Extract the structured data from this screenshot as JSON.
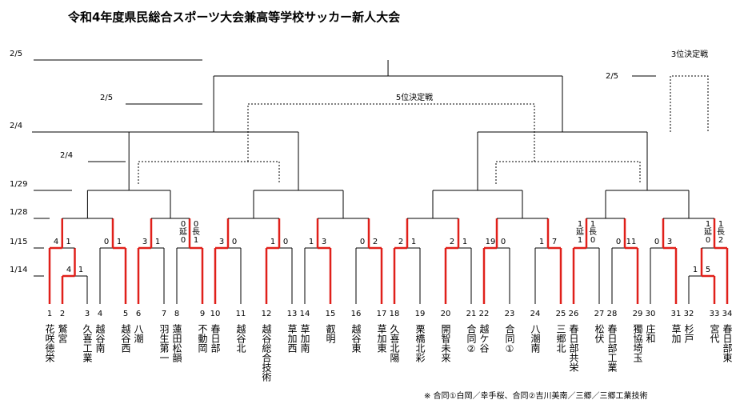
{
  "header": {
    "title": "令和4年度県民総合スポーツ大会兼高等学校サッカー新人大会"
  },
  "dates": [
    "2/5",
    "2/5",
    "2/4",
    "2/4",
    "1/29",
    "1/28",
    "1/15",
    "1/14"
  ],
  "third_place": {
    "label": "3位決定戦",
    "date": "2/5"
  },
  "fifth_place": {
    "label": "5位決定戦"
  },
  "teams": [
    {
      "no": 1,
      "name": "花咲徳栄"
    },
    {
      "no": 2,
      "name": "鷲宮"
    },
    {
      "no": 3,
      "name": "久喜工業"
    },
    {
      "no": 4,
      "name": "越谷南"
    },
    {
      "no": 5,
      "name": "越谷西"
    },
    {
      "no": 6,
      "name": "八潮"
    },
    {
      "no": 7,
      "name": "羽生第一"
    },
    {
      "no": 8,
      "name": "蓮田松韻"
    },
    {
      "no": 9,
      "name": "不動岡"
    },
    {
      "no": 10,
      "name": "春日部"
    },
    {
      "no": 11,
      "name": "越谷北"
    },
    {
      "no": 12,
      "name": "越谷総合技術"
    },
    {
      "no": 13,
      "name": "草加西"
    },
    {
      "no": 14,
      "name": "草加南"
    },
    {
      "no": 15,
      "name": "叡明"
    },
    {
      "no": 16,
      "name": "越谷東"
    },
    {
      "no": 17,
      "name": "草加東"
    },
    {
      "no": 18,
      "name": "久喜北陽"
    },
    {
      "no": 19,
      "name": "栗橋北彩"
    },
    {
      "no": 20,
      "name": "開智未来"
    },
    {
      "no": 21,
      "name": "合同②"
    },
    {
      "no": 22,
      "name": "越ケ谷"
    },
    {
      "no": 23,
      "name": "合同①"
    },
    {
      "no": 24,
      "name": "八潮南"
    },
    {
      "no": 25,
      "name": "三郷北"
    },
    {
      "no": 26,
      "name": "春日部共栄"
    },
    {
      "no": 27,
      "name": "松伏"
    },
    {
      "no": 28,
      "name": "春日部工業"
    },
    {
      "no": 29,
      "name": "獨協埼玉"
    },
    {
      "no": 30,
      "name": "庄和"
    },
    {
      "no": 31,
      "name": "草加"
    },
    {
      "no": 32,
      "name": "杉戸"
    },
    {
      "no": 33,
      "name": "宮代"
    },
    {
      "no": 34,
      "name": "春日部東"
    }
  ],
  "matches": [
    {
      "left": 4,
      "right": 1
    },
    {
      "left": 4,
      "right": 1
    },
    {
      "left": 0,
      "right": 1
    },
    {
      "left": 3,
      "right": 1
    },
    {
      "left": 0,
      "right": 0,
      "note_left": "延",
      "note_right": "長",
      "extra_left": 0,
      "extra_right": 1
    },
    {
      "left": 3,
      "right": 0
    },
    {
      "left": 1,
      "right": 0
    },
    {
      "left": 1,
      "right": 3
    },
    {
      "left": 0,
      "right": 2
    },
    {
      "left": 2,
      "right": 1
    },
    {
      "left": 2,
      "right": 1
    },
    {
      "left": 19,
      "right": 0
    },
    {
      "left": 1,
      "right": 7
    },
    {
      "left": 1,
      "right": 1,
      "note_left": "延",
      "note_right": "長",
      "extra_left": 1,
      "extra_right": 0
    },
    {
      "left": 0,
      "right": 11
    },
    {
      "left": 0,
      "right": 3
    },
    {
      "left": 1,
      "right": 1,
      "note_left": "延",
      "note_right": "長",
      "extra_left": 0,
      "extra_right": 2
    },
    {
      "left": 1,
      "right": 5
    }
  ],
  "footnote": "※ 合同①白岡／幸手桜、合同②吉川美南／三郷／三郷工業技術"
}
